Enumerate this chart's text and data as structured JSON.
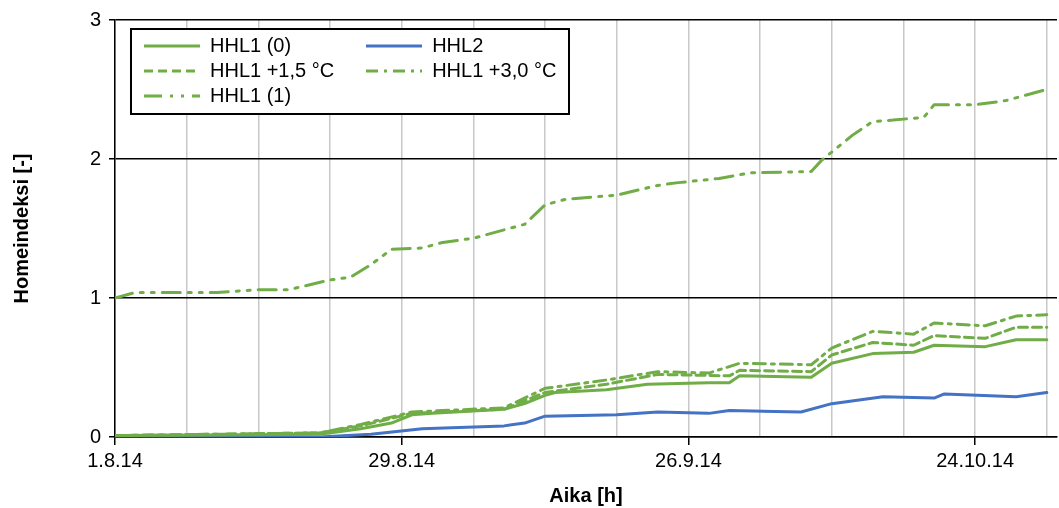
{
  "chart_data": {
    "type": "line",
    "xlabel": "Aika [h]",
    "ylabel": "Homeindeksi [-]",
    "xlim": [
      "--08-01",
      "--11-01"
    ],
    "ylim": [
      0,
      3
    ],
    "yticks": [
      0,
      1,
      2,
      3
    ],
    "xticks": [
      {
        "value": "--08-01",
        "label": "1.8.14"
      },
      {
        "value": "--08-08",
        "label": null
      },
      {
        "value": "--08-15",
        "label": null
      },
      {
        "value": "--08-22",
        "label": null
      },
      {
        "value": "--08-29",
        "label": "29.8.14"
      },
      {
        "value": "--09-05",
        "label": null
      },
      {
        "value": "--09-12",
        "label": null
      },
      {
        "value": "--09-19",
        "label": null
      },
      {
        "value": "--09-26",
        "label": "26.9.14"
      },
      {
        "value": "--10-03",
        "label": null
      },
      {
        "value": "--10-10",
        "label": null
      },
      {
        "value": "--10-17",
        "label": null
      },
      {
        "value": "--10-24",
        "label": "24.10.14"
      },
      {
        "value": "--10-31",
        "label": null
      }
    ],
    "grid": true,
    "legend": "top left",
    "marker": "none",
    "series": [
      {
        "name": "HHL1 (0)",
        "color": "#70ad47",
        "line_style": "solid",
        "x": [
          "--08-01",
          "--08-21",
          "--08-25",
          "--08-28",
          "--08-30",
          "--09-01",
          "--09-08",
          "--09-10",
          "--09-12",
          "--09-13",
          "--09-18",
          "--09-22",
          "--09-28",
          "--09-30",
          "--10-01",
          "--10-08",
          "--10-10",
          "--10-14",
          "--10-18",
          "--10-20",
          "--10-25",
          "--10-28",
          "--10-31"
        ],
        "values": [
          0.01,
          0.02,
          0.06,
          0.1,
          0.16,
          0.17,
          0.2,
          0.24,
          0.3,
          0.32,
          0.34,
          0.38,
          0.39,
          0.39,
          0.44,
          0.43,
          0.53,
          0.6,
          0.61,
          0.66,
          0.65,
          0.7,
          0.7
        ]
      },
      {
        "name": "HHL2",
        "color": "#4472c4",
        "line_style": "solid",
        "x": [
          "--08-01",
          "--08-21",
          "--08-26",
          "--08-31",
          "--09-08",
          "--09-10",
          "--09-12",
          "--09-19",
          "--09-23",
          "--09-28",
          "--09-30",
          "--10-07",
          "--10-10",
          "--10-15",
          "--10-20",
          "--10-21",
          "--10-28",
          "--10-31"
        ],
        "values": [
          0,
          0,
          0.02,
          0.06,
          0.08,
          0.1,
          0.15,
          0.16,
          0.18,
          0.17,
          0.19,
          0.18,
          0.24,
          0.29,
          0.28,
          0.31,
          0.29,
          0.32
        ]
      },
      {
        "name": "HHL1 +1,5 °C",
        "color": "#70ad47",
        "line_style": "dashed",
        "x": [
          "--08-01",
          "--08-21",
          "--08-25",
          "--08-30",
          "--09-08",
          "--09-12",
          "--09-18",
          "--09-23",
          "--09-30",
          "--10-01",
          "--10-08",
          "--10-10",
          "--10-14",
          "--10-18",
          "--10-20",
          "--10-25",
          "--10-28",
          "--10-31"
        ],
        "values": [
          0.01,
          0.03,
          0.08,
          0.17,
          0.2,
          0.32,
          0.38,
          0.45,
          0.44,
          0.48,
          0.47,
          0.59,
          0.68,
          0.66,
          0.73,
          0.71,
          0.79,
          0.79
        ]
      },
      {
        "name": "HHL1 +3,0 °C",
        "color": "#70ad47",
        "line_style": "dashdot",
        "x": [
          "--08-01",
          "--08-21",
          "--08-25",
          "--08-30",
          "--09-08",
          "--09-12",
          "--09-18",
          "--09-23",
          "--09-28",
          "--10-01",
          "--10-08",
          "--10-10",
          "--10-14",
          "--10-18",
          "--10-20",
          "--10-25",
          "--10-28",
          "--10-31"
        ],
        "values": [
          0.01,
          0.03,
          0.09,
          0.18,
          0.21,
          0.35,
          0.41,
          0.47,
          0.46,
          0.53,
          0.52,
          0.64,
          0.76,
          0.74,
          0.82,
          0.8,
          0.87,
          0.88
        ]
      },
      {
        "name": "HHL1 (1)",
        "color": "#70ad47",
        "line_style": "dashdotdot",
        "x": [
          "--08-01",
          "--08-03",
          "--08-11",
          "--08-15",
          "--08-18",
          "--08-22",
          "--08-24",
          "--08-26",
          "--08-28",
          "--08-31",
          "--09-02",
          "--09-05",
          "--09-10",
          "--09-12",
          "--09-14",
          "--09-19",
          "--09-23",
          "--09-25",
          "--09-29",
          "--10-02",
          "--10-08",
          "--10-09",
          "--10-12",
          "--10-14",
          "--10-16",
          "--10-19",
          "--10-20",
          "--10-24",
          "--10-27",
          "--10-31"
        ],
        "values": [
          1.0,
          1.04,
          1.04,
          1.06,
          1.06,
          1.13,
          1.15,
          1.24,
          1.35,
          1.36,
          1.4,
          1.43,
          1.53,
          1.67,
          1.71,
          1.74,
          1.81,
          1.83,
          1.86,
          1.9,
          1.91,
          1.99,
          2.17,
          2.27,
          2.28,
          2.3,
          2.39,
          2.39,
          2.42,
          2.5
        ]
      }
    ]
  }
}
